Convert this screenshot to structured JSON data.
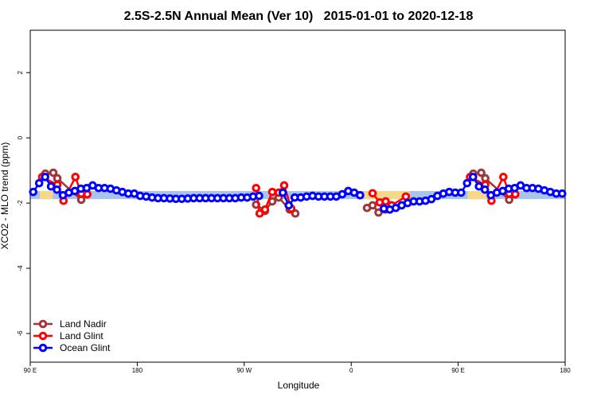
{
  "chart_data": {
    "type": "line",
    "title": "2.5S-2.5N Annual Mean (Ver 10)   2015-01-01 to 2020-12-18",
    "xlabel": "Longitude",
    "ylabel": "XCO2 - MLO trend (ppm)",
    "xlim": [
      90,
      540
    ],
    "ylim": [
      -6.88,
      3.3
    ],
    "xticks": [
      {
        "value": 90,
        "label": "90 E"
      },
      180,
      {
        "value": 270,
        "label": "90 W"
      },
      {
        "value": 360,
        "label": "0"
      },
      {
        "value": 450,
        "label": "90 E"
      },
      {
        "value": 540,
        "label": "180"
      }
    ],
    "yticks": [
      -6,
      -4,
      -2,
      0,
      2
    ],
    "legend": "bottomleft",
    "band": {
      "lower": -1.88,
      "upper": -1.63,
      "color": "#a9c4e8"
    },
    "land_bands": {
      "color": "#f5d88a",
      "x_ranges": [
        [
          98,
          109
        ],
        [
          371,
          409
        ],
        [
          458,
          474
        ]
      ]
    },
    "series": [
      {
        "name": "Land Nadir",
        "color": "#a0353a",
        "x": [
          102.7,
          109.4,
          112.8,
          132.9,
          138,
          null,
          280,
          287.5,
          293.6,
          299,
          308.3,
          313,
          null,
          373.3,
          378,
          383,
          388.7,
          null,
          462.7,
          469.4,
          472.8,
          492.9,
          498
        ],
        "values": [
          -1.1,
          -1.07,
          -1.24,
          -1.9,
          -1.73,
          null,
          -2.05,
          -2.24,
          -1.95,
          -1.83,
          -2.2,
          -2.32,
          null,
          -2.15,
          -2.07,
          -2.29,
          -2.2,
          null,
          -1.1,
          -1.07,
          -1.24,
          -1.9,
          -1.73
        ]
      },
      {
        "name": "Land Glint",
        "color": "#ff0000",
        "x": [
          100,
          112.8,
          118,
          128,
          132.9,
          138,
          null,
          280,
          283,
          287.5,
          293.6,
          299,
          303.6,
          309.6,
          null,
          378,
          384,
          389,
          394,
          406,
          null,
          460,
          472.8,
          478,
          488,
          492.9,
          498
        ],
        "values": [
          -1.2,
          -1.44,
          -1.93,
          -1.2,
          -1.71,
          -1.73,
          null,
          -1.54,
          -2.32,
          -2.2,
          -1.66,
          -1.68,
          -1.46,
          -2.17,
          null,
          -1.7,
          -1.98,
          -1.95,
          -2.07,
          -1.8,
          null,
          -1.2,
          -1.44,
          -1.93,
          -1.2,
          -1.71,
          -1.73
        ]
      },
      {
        "name": "Ocean Glint",
        "color": "#0000ff",
        "x": [
          92.5,
          97.5,
          102.5,
          107.5,
          112.5,
          117.5,
          122.5,
          127.5,
          132.5,
          137.5,
          142.5,
          147.5,
          152.5,
          157.5,
          162.5,
          167.5,
          172.5,
          177.5,
          182.5,
          187.5,
          192.5,
          197.5,
          202.5,
          207.5,
          212.5,
          217.5,
          222.5,
          227.5,
          232.5,
          237.5,
          242.5,
          247.5,
          252.5,
          257.5,
          262.5,
          267.5,
          272.5,
          277.5,
          282.5,
          287.5,
          292.5,
          297.5,
          302.5,
          307.5,
          312.5,
          317.5,
          322.5,
          327.5,
          332.5,
          337.5,
          342.5,
          347.5,
          352.5,
          357.5,
          362.5,
          367.5,
          372.5,
          377.5,
          382.5,
          387.5,
          392.5,
          397.5,
          402.5,
          407.5,
          412.5,
          417.5,
          422.5,
          427.5,
          432.5,
          437.5,
          442.5,
          447.5,
          452.5,
          457.5,
          462.5,
          467.5,
          472.5,
          477.5,
          482.5,
          487.5,
          492.5,
          497.5,
          502.5,
          507.5,
          512.5,
          517.5,
          522.5,
          527.5,
          532.5,
          537.5
        ],
        "values": [
          -1.66,
          -1.39,
          -1.2,
          -1.49,
          -1.59,
          -1.76,
          -1.68,
          -1.63,
          -1.56,
          -1.54,
          -1.46,
          -1.54,
          -1.54,
          -1.56,
          -1.61,
          -1.66,
          -1.71,
          -1.71,
          -1.78,
          -1.8,
          -1.83,
          -1.85,
          -1.85,
          -1.86,
          -1.87,
          -1.87,
          -1.86,
          -1.85,
          -1.85,
          -1.85,
          -1.85,
          -1.85,
          -1.85,
          -1.85,
          -1.85,
          -1.83,
          -1.83,
          -1.8,
          -1.78,
          null,
          null,
          null,
          -1.68,
          -2.07,
          -1.83,
          -1.83,
          -1.8,
          -1.78,
          -1.8,
          -1.8,
          -1.8,
          -1.8,
          -1.73,
          -1.63,
          -1.68,
          -1.76,
          null,
          null,
          null,
          -2.17,
          -2.2,
          -2.15,
          -2.07,
          -2.0,
          -1.95,
          -1.95,
          -1.93,
          -1.88,
          -1.78,
          -1.71,
          -1.66,
          -1.68,
          -1.68,
          -1.39,
          -1.2,
          -1.49,
          -1.59,
          -1.76,
          -1.68,
          -1.63,
          -1.56,
          -1.54,
          -1.46,
          -1.54,
          -1.54,
          -1.56,
          -1.61,
          -1.66,
          -1.71,
          -1.71
        ]
      }
    ]
  }
}
